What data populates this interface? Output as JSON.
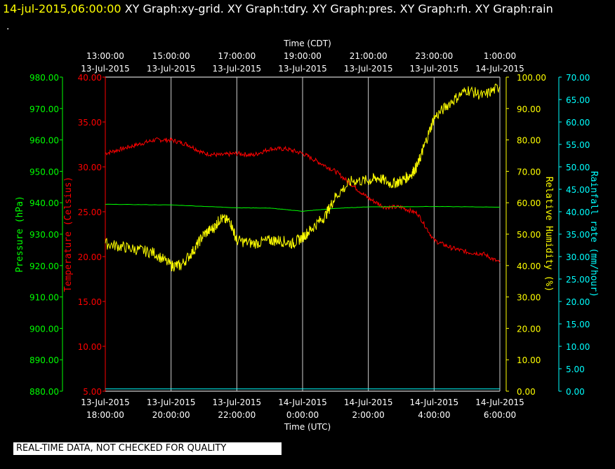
{
  "header": {
    "timestamp": "14-jul-2015,06:00:00",
    "titles": "XY Graph:xy-grid.  XY Graph:tdry.  XY Graph:pres.  XY Graph:rh.  XY Graph:rain"
  },
  "dot": ".",
  "quality_note": "REAL-TIME DATA, NOT CHECKED FOR QUALITY",
  "colors": {
    "background": "#000000",
    "grid": "#ffffff",
    "temperature": "#ff0000",
    "pressure": "#00ff00",
    "humidity": "#ffff00",
    "rainfall": "#00ffff",
    "axis_text": "#ffffff"
  },
  "chart_data": {
    "type": "line",
    "x_top": {
      "label": "Time (CDT)",
      "ticks": [
        {
          "time": "13:00:00",
          "date": "13-Jul-2015"
        },
        {
          "time": "15:00:00",
          "date": "13-Jul-2015"
        },
        {
          "time": "17:00:00",
          "date": "13-Jul-2015"
        },
        {
          "time": "19:00:00",
          "date": "13-Jul-2015"
        },
        {
          "time": "21:00:00",
          "date": "13-Jul-2015"
        },
        {
          "time": "23:00:00",
          "date": "13-Jul-2015"
        },
        {
          "time": "1:00:00",
          "date": "14-Jul-2015"
        }
      ]
    },
    "x_bottom": {
      "label": "Time (UTC)",
      "ticks": [
        {
          "date": "13-Jul-2015",
          "time": "18:00:00"
        },
        {
          "date": "13-Jul-2015",
          "time": "20:00:00"
        },
        {
          "date": "13-Jul-2015",
          "time": "22:00:00"
        },
        {
          "date": "14-Jul-2015",
          "time": "0:00:00"
        },
        {
          "date": "14-Jul-2015",
          "time": "2:00:00"
        },
        {
          "date": "14-Jul-2015",
          "time": "4:00:00"
        },
        {
          "date": "14-Jul-2015",
          "time": "6:00:00"
        }
      ]
    },
    "x_range_utc_hours": [
      18,
      30
    ],
    "axes": {
      "pressure": {
        "label": "Pressure (hPa)",
        "range": [
          880,
          980
        ],
        "ticks": [
          "980.00",
          "970.00",
          "960.00",
          "950.00",
          "940.00",
          "930.00",
          "920.00",
          "910.00",
          "900.00",
          "890.00",
          "880.00"
        ]
      },
      "temperature": {
        "label": "Temperature (Celsius)",
        "range": [
          5,
          40
        ],
        "ticks": [
          "40.00",
          "35.00",
          "30.00",
          "25.00",
          "20.00",
          "15.00",
          "10.00",
          "5.00"
        ]
      },
      "humidity": {
        "label": "Relative Humidity (%)",
        "range": [
          0,
          100
        ],
        "ticks": [
          "100.00",
          "90.00",
          "80.00",
          "70.00",
          "60.00",
          "50.00",
          "40.00",
          "30.00",
          "20.00",
          "10.00",
          "0.00"
        ]
      },
      "rainfall": {
        "label": "Rainfall rate (mm/hour)",
        "range": [
          0,
          70
        ],
        "ticks": [
          "70.00",
          "65.00",
          "60.00",
          "55.00",
          "50.00",
          "45.00",
          "40.00",
          "35.00",
          "30.00",
          "25.00",
          "20.00",
          "15.00",
          "10.00",
          "5.00",
          "0.00"
        ]
      }
    },
    "series": [
      {
        "name": "tdry",
        "axis": "temperature",
        "x": [
          18,
          18.5,
          19,
          19.5,
          20,
          20.5,
          21,
          21.5,
          22,
          22.5,
          23,
          23.5,
          24,
          24.5,
          25,
          25.5,
          26,
          26.5,
          27,
          27.5,
          28,
          28.5,
          29,
          29.5,
          30
        ],
        "y": [
          31.5,
          32,
          32.5,
          33,
          33,
          32.5,
          31.5,
          31.3,
          31.5,
          31.3,
          32,
          32,
          31.5,
          30.5,
          29.5,
          28,
          26.5,
          25.5,
          25.5,
          24.8,
          21.8,
          21,
          20.5,
          20.3,
          19.3
        ]
      },
      {
        "name": "pres",
        "axis": "pressure",
        "x": [
          18,
          20,
          22,
          23,
          24,
          25,
          26,
          28,
          30
        ],
        "y": [
          939.5,
          939.3,
          938.4,
          938.3,
          937.3,
          938.2,
          938.7,
          938.8,
          938.6
        ]
      },
      {
        "name": "rh",
        "axis": "humidity",
        "x": [
          18,
          18.5,
          19,
          19.5,
          20,
          20.3,
          20.7,
          21,
          21.3,
          21.5,
          21.8,
          22,
          22.5,
          23,
          23.3,
          23.7,
          24,
          24.3,
          24.7,
          25,
          25.5,
          26,
          26.3,
          26.7,
          27,
          27.3,
          27.5,
          27.7,
          28,
          28.5,
          29,
          29.5,
          30
        ],
        "y": [
          47,
          46,
          45,
          44,
          40,
          40,
          45,
          50,
          52,
          55,
          54,
          48,
          47,
          48,
          48,
          47,
          49,
          52,
          56,
          62,
          67,
          67,
          68,
          66,
          67,
          69,
          72,
          78,
          87,
          92,
          96,
          94,
          97
        ]
      },
      {
        "name": "rain",
        "axis": "rainfall",
        "x": [
          18,
          30
        ],
        "y": [
          0.5,
          0.5
        ]
      }
    ]
  }
}
